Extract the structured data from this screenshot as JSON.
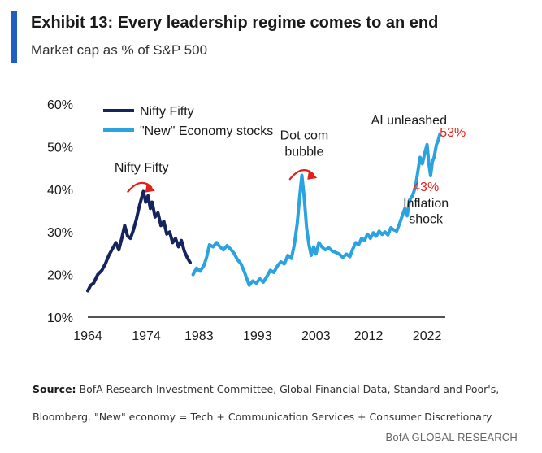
{
  "header": {
    "title": "Exhibit 13: Every leadership regime comes to an end",
    "subtitle": "Market cap as % of S&P 500"
  },
  "footer": {
    "source_label": "Source:",
    "source_text": "BofA Research Investment Committee, Global Financial Data, Standard and Poor's, Bloomberg. \"New\" economy = Tech + Communication Services + Consumer Discretionary",
    "brand": "BofA GLOBAL RESEARCH"
  },
  "colors": {
    "accent": "#1f5fbf",
    "nifty": "#16245e",
    "new_economy": "#2aa3e0",
    "highlight": "#e32119"
  },
  "chart_data": {
    "type": "line",
    "title": "",
    "xlabel": "",
    "ylabel": "",
    "x_ticks": [
      1964,
      1974,
      1983,
      1993,
      2003,
      2012,
      2022
    ],
    "y_ticks": [
      "10%",
      "20%",
      "30%",
      "40%",
      "50%",
      "60%"
    ],
    "ylim": [
      10,
      60
    ],
    "xlim": [
      1964,
      2024
    ],
    "grid": false,
    "legend": "top-left",
    "series": [
      {
        "name": "Nifty Fifty",
        "color": "#16245e",
        "points": [
          [
            1964,
            16.2
          ],
          [
            1964.5,
            17.5
          ],
          [
            1965,
            18
          ],
          [
            1965.7,
            20
          ],
          [
            1966.4,
            21
          ],
          [
            1967,
            22.5
          ],
          [
            1967.6,
            24.5
          ],
          [
            1968.2,
            26
          ],
          [
            1968.8,
            27.5
          ],
          [
            1969.3,
            25.8
          ],
          [
            1969.8,
            28.5
          ],
          [
            1970.3,
            31.5
          ],
          [
            1970.8,
            29
          ],
          [
            1971.3,
            28.5
          ],
          [
            1971.8,
            30.5
          ],
          [
            1972.3,
            33
          ],
          [
            1972.8,
            36
          ],
          [
            1973.2,
            38
          ],
          [
            1973.5,
            39.5
          ],
          [
            1973.9,
            37
          ],
          [
            1974.3,
            38.5
          ],
          [
            1974.7,
            35.5
          ],
          [
            1975,
            37
          ],
          [
            1975.5,
            33.5
          ],
          [
            1976,
            34.5
          ],
          [
            1976.5,
            31.5
          ],
          [
            1977,
            32.5
          ],
          [
            1977.5,
            29.5
          ],
          [
            1978,
            30
          ],
          [
            1978.5,
            27.5
          ],
          [
            1979,
            28.5
          ],
          [
            1979.5,
            26.5
          ],
          [
            1980,
            28
          ],
          [
            1980.5,
            25.5
          ],
          [
            1981,
            24
          ],
          [
            1981.5,
            22.8
          ]
        ]
      },
      {
        "name": "\"New\" Economy stocks",
        "color": "#2aa3e0",
        "points": [
          [
            1982,
            20
          ],
          [
            1982.6,
            21.5
          ],
          [
            1983.2,
            20.8
          ],
          [
            1983.8,
            22
          ],
          [
            1984.3,
            24
          ],
          [
            1984.8,
            27
          ],
          [
            1985.4,
            26.5
          ],
          [
            1986,
            27.5
          ],
          [
            1986.6,
            26.5
          ],
          [
            1987.2,
            25.8
          ],
          [
            1987.8,
            26.8
          ],
          [
            1988.4,
            26
          ],
          [
            1989,
            25
          ],
          [
            1989.6,
            23.5
          ],
          [
            1990.2,
            22.5
          ],
          [
            1990.8,
            20.5
          ],
          [
            1991.2,
            19
          ],
          [
            1991.6,
            17.5
          ],
          [
            1992.2,
            18.5
          ],
          [
            1992.8,
            18
          ],
          [
            1993.4,
            19
          ],
          [
            1994,
            18.2
          ],
          [
            1994.6,
            19.5
          ],
          [
            1995.2,
            21
          ],
          [
            1995.8,
            20.5
          ],
          [
            1996.4,
            22
          ],
          [
            1997,
            23
          ],
          [
            1997.6,
            22.5
          ],
          [
            1998.2,
            24.5
          ],
          [
            1998.8,
            23.8
          ],
          [
            1999.3,
            27
          ],
          [
            1999.8,
            32
          ],
          [
            2000.2,
            38
          ],
          [
            2000.6,
            43.3
          ],
          [
            2001,
            38
          ],
          [
            2001.4,
            31
          ],
          [
            2001.8,
            27
          ],
          [
            2002.2,
            24.5
          ],
          [
            2002.6,
            26.5
          ],
          [
            2003,
            24.8
          ],
          [
            2003.5,
            27.5
          ],
          [
            2004,
            26.5
          ],
          [
            2004.6,
            25.8
          ],
          [
            2005.2,
            26.3
          ],
          [
            2005.8,
            25.5
          ],
          [
            2006.4,
            25.2
          ],
          [
            2007,
            24.8
          ],
          [
            2007.6,
            24
          ],
          [
            2008.2,
            24.8
          ],
          [
            2008.8,
            24.2
          ],
          [
            2009.3,
            26
          ],
          [
            2009.8,
            27.5
          ],
          [
            2010.3,
            27
          ],
          [
            2010.8,
            28.5
          ],
          [
            2011.3,
            28
          ],
          [
            2011.8,
            29.5
          ],
          [
            2012.3,
            28.5
          ],
          [
            2012.8,
            29.8
          ],
          [
            2013.3,
            29
          ],
          [
            2013.8,
            30.2
          ],
          [
            2014.3,
            29.4
          ],
          [
            2014.8,
            30
          ],
          [
            2015.3,
            29.3
          ],
          [
            2015.8,
            31
          ],
          [
            2016.3,
            30.5
          ],
          [
            2016.8,
            30.2
          ],
          [
            2017.3,
            32
          ],
          [
            2017.8,
            34
          ],
          [
            2018.2,
            35.5
          ],
          [
            2018.6,
            33.8
          ],
          [
            2019,
            37.5
          ],
          [
            2019.5,
            38.5
          ],
          [
            2020,
            40.5
          ],
          [
            2020.4,
            44
          ],
          [
            2020.8,
            47.5
          ],
          [
            2021.2,
            46
          ],
          [
            2021.6,
            48.5
          ],
          [
            2022,
            50.5
          ],
          [
            2022.3,
            46
          ],
          [
            2022.6,
            43.2
          ],
          [
            2022.9,
            46.5
          ],
          [
            2023.2,
            47.5
          ],
          [
            2023.6,
            50.5
          ],
          [
            2023.9,
            51.5
          ],
          [
            2024.2,
            53
          ]
        ]
      }
    ],
    "annotations": [
      {
        "text": "Nifty Fifty",
        "x": 1973.2,
        "y": 44.2,
        "color": "#1a1a1a"
      },
      {
        "text": "Dot com",
        "x": 2001,
        "y": 51.7,
        "color": "#1a1a1a"
      },
      {
        "text": "bubble",
        "x": 2001,
        "y": 47.9,
        "color": "#1a1a1a"
      },
      {
        "text": "AI unleashed",
        "x": 2018.9,
        "y": 55.2,
        "color": "#1a1a1a"
      },
      {
        "text": "53%",
        "x": 2026.4,
        "y": 52.4,
        "color": "#e32119"
      },
      {
        "text": "43%",
        "x": 2021.8,
        "y": 39.6,
        "color": "#e32119"
      },
      {
        "text": "Inflation",
        "x": 2021.8,
        "y": 35.8,
        "color": "#1a1a1a"
      },
      {
        "text": "shock",
        "x": 2021.8,
        "y": 32.0,
        "color": "#1a1a1a"
      }
    ]
  }
}
